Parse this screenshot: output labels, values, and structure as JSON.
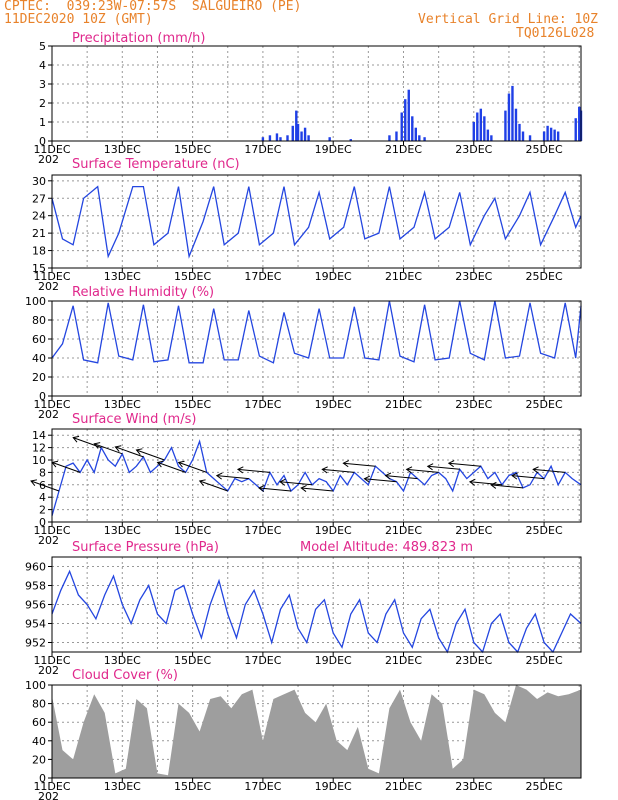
{
  "header": {
    "line1": "CPTEC:  039:23W-07:57S  SALGUEIRO (PE)",
    "line2": "11DEC2020 10Z (GMT)",
    "vgrid": "Vertical Grid Line: 10Z",
    "code": "TQ0126L028"
  },
  "x_labels": [
    "11DEC",
    "13DEC",
    "15DEC",
    "17DEC",
    "19DEC",
    "21DEC",
    "23DEC",
    "25DEC"
  ],
  "x_sublabel": "202",
  "chart_data": [
    {
      "type": "bar",
      "title": "Precipitation (mm/h)",
      "ylim": [
        0,
        5
      ],
      "yticks": [
        0,
        1,
        2,
        3,
        4,
        5
      ],
      "bars": [
        [
          6.0,
          0.2
        ],
        [
          6.2,
          0.3
        ],
        [
          6.4,
          0.4
        ],
        [
          6.5,
          0.2
        ],
        [
          6.7,
          0.3
        ],
        [
          6.85,
          0.8
        ],
        [
          6.95,
          1.6
        ],
        [
          7.0,
          0.9
        ],
        [
          7.1,
          0.5
        ],
        [
          7.2,
          0.7
        ],
        [
          7.3,
          0.3
        ],
        [
          7.9,
          0.2
        ],
        [
          8.5,
          0.1
        ],
        [
          9.6,
          0.3
        ],
        [
          9.8,
          0.5
        ],
        [
          9.95,
          1.5
        ],
        [
          10.05,
          2.2
        ],
        [
          10.15,
          2.7
        ],
        [
          10.25,
          1.3
        ],
        [
          10.35,
          0.7
        ],
        [
          10.45,
          0.3
        ],
        [
          10.6,
          0.2
        ],
        [
          12.0,
          1.0
        ],
        [
          12.1,
          1.5
        ],
        [
          12.2,
          1.7
        ],
        [
          12.3,
          1.3
        ],
        [
          12.4,
          0.6
        ],
        [
          12.5,
          0.3
        ],
        [
          12.9,
          1.6
        ],
        [
          13.0,
          2.5
        ],
        [
          13.1,
          2.9
        ],
        [
          13.2,
          1.7
        ],
        [
          13.3,
          0.9
        ],
        [
          13.4,
          0.5
        ],
        [
          13.6,
          0.3
        ],
        [
          14.0,
          0.5
        ],
        [
          14.1,
          0.8
        ],
        [
          14.2,
          0.7
        ],
        [
          14.3,
          0.6
        ],
        [
          14.4,
          0.5
        ],
        [
          14.9,
          1.2
        ],
        [
          15.0,
          1.8
        ],
        [
          15.05,
          1.6
        ]
      ]
    },
    {
      "type": "line",
      "title": "Surface Temperature (nC)",
      "ylim": [
        15,
        31
      ],
      "yticks": [
        15,
        18,
        21,
        24,
        27,
        30
      ],
      "series": [
        {
          "x": [
            0,
            0.3,
            0.6,
            0.9,
            1.3,
            1.6,
            1.9,
            2.3,
            2.6,
            2.9,
            3.3,
            3.6,
            3.9,
            4.3,
            4.6,
            4.9,
            5.3,
            5.6,
            5.9,
            6.3,
            6.6,
            6.9,
            7.3,
            7.6,
            7.9,
            8.3,
            8.6,
            8.9,
            9.3,
            9.6,
            9.9,
            10.3,
            10.6,
            10.9,
            11.3,
            11.6,
            11.9,
            12.3,
            12.6,
            12.9,
            13.3,
            13.6,
            13.9,
            14.3,
            14.6,
            14.9,
            15.05
          ],
          "y": [
            27,
            20,
            19,
            27,
            29,
            17,
            21,
            29,
            29,
            19,
            21,
            29,
            17,
            23,
            29,
            19,
            21,
            29,
            19,
            21,
            29,
            19,
            22,
            28,
            20,
            22,
            29,
            20,
            21,
            29,
            20,
            22,
            28,
            20,
            22,
            28,
            19,
            24,
            27,
            20,
            24,
            28,
            19,
            24,
            28,
            22,
            24
          ]
        }
      ]
    },
    {
      "type": "line",
      "title": "Relative Humidity (%)",
      "ylim": [
        0,
        100
      ],
      "yticks": [
        0,
        20,
        40,
        60,
        80,
        100
      ],
      "series": [
        {
          "x": [
            0,
            0.3,
            0.6,
            0.9,
            1.3,
            1.6,
            1.9,
            2.3,
            2.6,
            2.9,
            3.3,
            3.6,
            3.9,
            4.3,
            4.6,
            4.9,
            5.3,
            5.6,
            5.9,
            6.3,
            6.6,
            6.9,
            7.3,
            7.6,
            7.9,
            8.3,
            8.6,
            8.9,
            9.3,
            9.6,
            9.9,
            10.3,
            10.6,
            10.9,
            11.3,
            11.6,
            11.9,
            12.3,
            12.6,
            12.9,
            13.3,
            13.6,
            13.9,
            14.3,
            14.6,
            14.9,
            15.05
          ],
          "y": [
            40,
            55,
            95,
            38,
            35,
            98,
            42,
            38,
            96,
            36,
            38,
            95,
            35,
            35,
            92,
            38,
            38,
            90,
            42,
            35,
            88,
            45,
            40,
            92,
            40,
            40,
            94,
            40,
            38,
            100,
            42,
            36,
            96,
            38,
            40,
            100,
            45,
            38,
            100,
            40,
            42,
            98,
            45,
            40,
            98,
            40,
            95
          ]
        }
      ]
    },
    {
      "type": "line",
      "title": "Surface Wind (m/s)",
      "ylim": [
        0,
        15
      ],
      "yticks": [
        0,
        2,
        4,
        6,
        8,
        10,
        12,
        14
      ],
      "series": [
        {
          "x": [
            0,
            0.2,
            0.4,
            0.6,
            0.8,
            1.0,
            1.2,
            1.4,
            1.6,
            1.8,
            2.0,
            2.2,
            2.4,
            2.6,
            2.8,
            3.0,
            3.2,
            3.4,
            3.6,
            3.8,
            4.0,
            4.2,
            4.4,
            4.6,
            4.8,
            5.0,
            5.2,
            5.4,
            5.6,
            5.8,
            6.0,
            6.2,
            6.4,
            6.6,
            6.8,
            7.0,
            7.2,
            7.4,
            7.6,
            7.8,
            8.0,
            8.2,
            8.4,
            8.6,
            8.8,
            9.0,
            9.2,
            9.4,
            9.6,
            9.8,
            10.0,
            10.2,
            10.4,
            10.6,
            10.8,
            11.0,
            11.2,
            11.4,
            11.6,
            11.8,
            12.0,
            12.2,
            12.4,
            12.6,
            12.8,
            13.0,
            13.2,
            13.4,
            13.6,
            13.8,
            14.0,
            14.2,
            14.4,
            14.6,
            14.8,
            15.05
          ],
          "y": [
            1,
            5,
            9,
            9.5,
            8,
            10,
            8,
            12,
            10,
            9,
            11,
            8,
            9,
            10.5,
            8,
            9,
            10,
            12,
            9,
            8,
            10,
            13,
            8,
            7,
            6,
            5,
            7,
            6.5,
            7,
            6,
            5,
            8,
            6,
            7.5,
            5,
            6,
            8,
            6,
            7,
            6.5,
            5,
            7.5,
            6,
            8,
            7,
            6,
            9,
            8,
            7,
            6.5,
            5,
            8,
            7,
            6,
            7.5,
            8,
            7,
            5,
            8.5,
            7,
            8,
            9,
            7,
            8,
            6,
            7.5,
            8,
            5.5,
            6,
            8,
            7,
            9,
            6,
            8,
            7,
            6
          ]
        }
      ]
    },
    {
      "type": "line",
      "title": "Surface Pressure (hPa)",
      "annotation": "Model Altitude: 489.823  m",
      "ylim": [
        951,
        961
      ],
      "yticks": [
        952,
        954,
        956,
        958,
        960
      ],
      "series": [
        {
          "x": [
            0,
            0.25,
            0.5,
            0.75,
            1.0,
            1.25,
            1.5,
            1.75,
            2.0,
            2.25,
            2.5,
            2.75,
            3.0,
            3.25,
            3.5,
            3.75,
            4.0,
            4.25,
            4.5,
            4.75,
            5.0,
            5.25,
            5.5,
            5.75,
            6.0,
            6.25,
            6.5,
            6.75,
            7.0,
            7.25,
            7.5,
            7.75,
            8.0,
            8.25,
            8.5,
            8.75,
            9.0,
            9.25,
            9.5,
            9.75,
            10.0,
            10.25,
            10.5,
            10.75,
            11.0,
            11.25,
            11.5,
            11.75,
            12.0,
            12.25,
            12.5,
            12.75,
            13.0,
            13.25,
            13.5,
            13.75,
            14.0,
            14.25,
            14.5,
            14.75,
            15.05
          ],
          "y": [
            955,
            957.5,
            959.5,
            957,
            956,
            954.5,
            957,
            959,
            956,
            954,
            956.5,
            958,
            955,
            954,
            957.5,
            958,
            955,
            952.5,
            956,
            958.5,
            955,
            952.5,
            956,
            957.5,
            955,
            952,
            955.5,
            957,
            953.5,
            952,
            955.5,
            956.5,
            953,
            951.5,
            955,
            956.5,
            953,
            952,
            955,
            956.5,
            953,
            951.5,
            954.5,
            955.5,
            952.5,
            951,
            954,
            955.5,
            952,
            951,
            954,
            955,
            952,
            951,
            953.5,
            955,
            952,
            951,
            953,
            955,
            954
          ]
        }
      ]
    },
    {
      "type": "area",
      "title": "Cloud Cover (%)",
      "ylim": [
        0,
        100
      ],
      "yticks": [
        0,
        20,
        40,
        60,
        80,
        100
      ],
      "series": [
        {
          "x": [
            0,
            0.3,
            0.6,
            0.9,
            1.2,
            1.5,
            1.8,
            2.1,
            2.4,
            2.7,
            3.0,
            3.3,
            3.6,
            3.9,
            4.2,
            4.5,
            4.8,
            5.1,
            5.4,
            5.7,
            6.0,
            6.3,
            6.6,
            6.9,
            7.2,
            7.5,
            7.8,
            8.1,
            8.4,
            8.7,
            9.0,
            9.3,
            9.6,
            9.9,
            10.2,
            10.5,
            10.8,
            11.1,
            11.4,
            11.7,
            12.0,
            12.3,
            12.6,
            12.9,
            13.2,
            13.5,
            13.8,
            14.1,
            14.4,
            14.7,
            15.05
          ],
          "y": [
            88,
            30,
            20,
            60,
            90,
            70,
            5,
            10,
            85,
            75,
            5,
            3,
            80,
            70,
            50,
            85,
            88,
            75,
            90,
            95,
            40,
            85,
            90,
            95,
            70,
            60,
            80,
            40,
            30,
            55,
            10,
            5,
            75,
            95,
            60,
            40,
            90,
            80,
            10,
            20,
            95,
            90,
            70,
            60,
            100,
            95,
            85,
            92,
            88,
            90,
            95
          ]
        }
      ]
    }
  ]
}
